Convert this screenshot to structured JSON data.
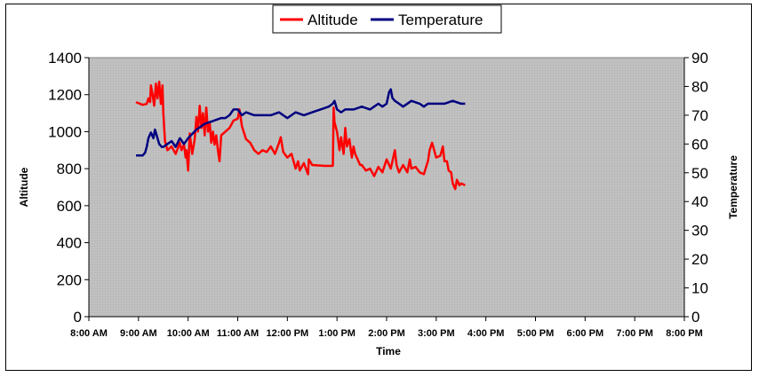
{
  "chart_data": {
    "type": "line",
    "xlabel": "Time",
    "x_ticks": [
      "8:00 AM",
      "9:00 AM",
      "10:00 AM",
      "11:00 AM",
      "12:00 PM",
      "1:00 PM",
      "2:00 PM",
      "3:00 PM",
      "4:00 PM",
      "5:00 PM",
      "6:00 PM",
      "7:00 PM",
      "8:00 PM"
    ],
    "xlim": [
      "8:00 AM",
      "8:00 PM"
    ],
    "y_left": {
      "label": "Altitude",
      "lim": [
        0,
        1400
      ],
      "ticks": [
        0,
        200,
        400,
        600,
        800,
        1000,
        1200,
        1400
      ]
    },
    "y_right": {
      "label": "Temperature",
      "lim": [
        0,
        90
      ],
      "ticks": [
        0,
        10,
        20,
        30,
        40,
        50,
        60,
        70,
        80,
        90
      ]
    },
    "legend": {
      "placement": "top-center"
    },
    "grid": false,
    "plot_background": "#c0c0c0",
    "series": [
      {
        "name": "Altitude",
        "axis": "left",
        "color": "#ff0000",
        "x": [
          "8:57 AM",
          "9:05 AM",
          "9:10 AM",
          "9:12 AM",
          "9:14 AM",
          "9:15 AM",
          "9:17 AM",
          "9:19 AM",
          "9:21 AM",
          "9:23 AM",
          "9:25 AM",
          "9:27 AM",
          "9:29 AM",
          "9:30 AM",
          "9:32 AM",
          "9:35 AM",
          "9:40 AM",
          "9:45 AM",
          "9:50 AM",
          "9:52 AM",
          "9:55 AM",
          "9:57 AM",
          "9:58 AM",
          "10:00 AM",
          "10:02 AM",
          "10:05 AM",
          "10:08 AM",
          "10:10 AM",
          "10:12 AM",
          "10:14 AM",
          "10:16 AM",
          "10:18 AM",
          "10:20 AM",
          "10:22 AM",
          "10:24 AM",
          "10:26 AM",
          "10:28 AM",
          "10:30 AM",
          "10:32 AM",
          "10:34 AM",
          "10:36 AM",
          "10:38 AM",
          "10:40 AM",
          "10:45 AM",
          "10:50 AM",
          "10:55 AM",
          "11:00 AM",
          "11:02 AM",
          "11:05 AM",
          "11:10 AM",
          "11:15 AM",
          "11:20 AM",
          "11:25 AM",
          "11:30 AM",
          "11:35 AM",
          "11:40 AM",
          "11:45 AM",
          "11:50 AM",
          "11:52 AM",
          "11:55 AM",
          "12:00 PM",
          "12:05 PM",
          "12:10 PM",
          "12:13 PM",
          "12:15 PM",
          "12:20 PM",
          "12:25 PM",
          "12:26 PM",
          "12:30 PM",
          "12:45 PM",
          "12:55 PM",
          "12:56 PM",
          "12:57 PM",
          "1:00 PM",
          "1:03 PM",
          "1:05 PM",
          "1:08 PM",
          "1:10 PM",
          "1:12 PM",
          "1:15 PM",
          "1:18 PM",
          "1:20 PM",
          "1:22 PM",
          "1:25 PM",
          "1:28 PM",
          "1:30 PM",
          "1:35 PM",
          "1:40 PM",
          "1:45 PM",
          "1:50 PM",
          "1:55 PM",
          "2:00 PM",
          "2:05 PM",
          "2:10 PM",
          "2:12 PM",
          "2:15 PM",
          "2:20 PM",
          "2:25 PM",
          "2:28 PM",
          "2:30 PM",
          "2:35 PM",
          "2:40 PM",
          "2:45 PM",
          "2:50 PM",
          "2:52 PM",
          "2:55 PM",
          "3:00 PM",
          "3:05 PM",
          "3:08 PM",
          "3:10 PM",
          "3:13 PM",
          "3:15 PM",
          "3:18 PM",
          "3:20 PM",
          "3:23 PM",
          "3:25 PM",
          "3:28 PM",
          "3:30 PM",
          "3:35 PM"
        ],
        "values": [
          1160,
          1145,
          1150,
          1180,
          1160,
          1250,
          1200,
          1140,
          1260,
          1180,
          1270,
          1150,
          1250,
          1100,
          950,
          900,
          920,
          880,
          940,
          900,
          930,
          860,
          900,
          790,
          990,
          880,
          960,
          1080,
          1000,
          1140,
          1020,
          1100,
          980,
          1130,
          1000,
          1050,
          940,
          1000,
          930,
          980,
          900,
          840,
          980,
          1000,
          1020,
          1060,
          1070,
          1120,
          1030,
          960,
          940,
          900,
          880,
          900,
          890,
          920,
          880,
          940,
          970,
          890,
          860,
          880,
          800,
          840,
          790,
          830,
          770,
          850,
          820,
          815,
          815,
          1130,
          1050,
          1000,
          900,
          970,
          880,
          1020,
          920,
          960,
          860,
          920,
          880,
          850,
          820,
          820,
          790,
          800,
          760,
          810,
          780,
          850,
          800,
          900,
          820,
          780,
          820,
          780,
          850,
          800,
          810,
          780,
          770,
          840,
          900,
          940,
          860,
          870,
          920,
          840,
          840,
          790,
          780,
          720,
          690,
          740,
          710,
          720,
          710
        ]
      },
      {
        "name": "Temperature",
        "axis": "right",
        "color": "#000080",
        "x": [
          "8:57 AM",
          "9:05 AM",
          "9:08 AM",
          "9:10 AM",
          "9:12 AM",
          "9:15 AM",
          "9:18 AM",
          "9:20 AM",
          "9:25 AM",
          "9:28 AM",
          "9:30 AM",
          "9:35 AM",
          "9:40 AM",
          "9:45 AM",
          "9:50 AM",
          "9:55 AM",
          "10:00 AM",
          "10:10 AM",
          "10:20 AM",
          "10:30 AM",
          "10:40 AM",
          "10:45 AM",
          "10:50 AM",
          "10:55 AM",
          "11:00 AM",
          "11:05 AM",
          "11:10 AM",
          "11:20 AM",
          "11:30 AM",
          "11:40 AM",
          "11:50 AM",
          "12:00 PM",
          "12:10 PM",
          "12:20 PM",
          "12:30 PM",
          "12:40 PM",
          "12:50 PM",
          "12:55 PM",
          "12:57 PM",
          "1:00 PM",
          "1:05 PM",
          "1:10 PM",
          "1:20 PM",
          "1:30 PM",
          "1:40 PM",
          "1:45 PM",
          "1:50 PM",
          "1:55 PM",
          "2:00 PM",
          "2:03 PM",
          "2:05 PM",
          "2:07 PM",
          "2:10 PM",
          "2:15 PM",
          "2:20 PM",
          "2:30 PM",
          "2:40 PM",
          "2:45 PM",
          "2:50 PM",
          "3:00 PM",
          "3:10 PM",
          "3:20 PM",
          "3:30 PM",
          "3:35 PM"
        ],
        "values": [
          56,
          56,
          57,
          59,
          62,
          64,
          62,
          65,
          60,
          59,
          59,
          60,
          61,
          59,
          62,
          60,
          62,
          65,
          67,
          68,
          69,
          69,
          70,
          72,
          72,
          70,
          71,
          70,
          70,
          70,
          71,
          69,
          71,
          70,
          71,
          72,
          73,
          74,
          75,
          72,
          71,
          72,
          72,
          73,
          72,
          73,
          74,
          73,
          74,
          78,
          79,
          76,
          75,
          74,
          73,
          75,
          74,
          73,
          74,
          74,
          74,
          75,
          74,
          74
        ]
      }
    ]
  }
}
